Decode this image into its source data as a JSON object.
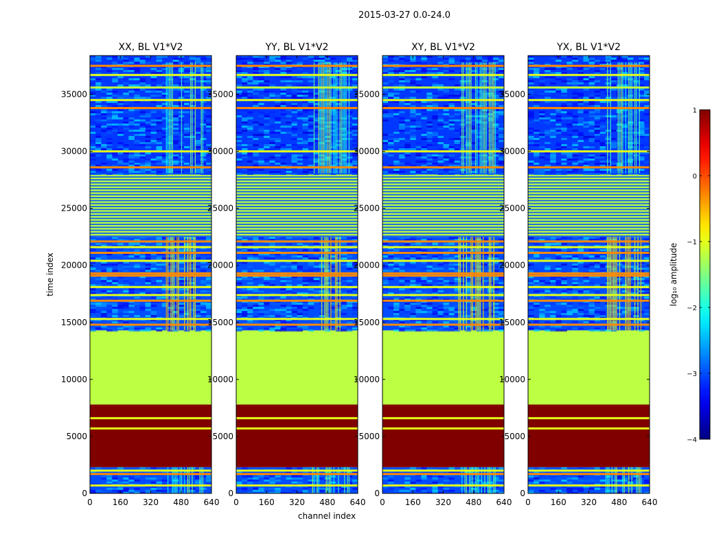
{
  "chart_data": {
    "type": "heatmap",
    "suptitle": "2015-03-27 0.0-24.0",
    "xlabel": "channel index",
    "ylabel": "time index",
    "xlim": [
      0,
      640
    ],
    "ylim": [
      0,
      38400
    ],
    "xticks": [
      0,
      160,
      320,
      480,
      640
    ],
    "yticks": [
      0,
      5000,
      10000,
      15000,
      20000,
      25000,
      30000,
      35000
    ],
    "colorbar": {
      "label": "log₁₀ amplitude",
      "min": -4,
      "max": 1,
      "ticks": [
        1,
        0,
        -1,
        -2,
        -3,
        -4
      ],
      "tick_labels": [
        "1",
        "0",
        "−1",
        "−2",
        "−3",
        "−4"
      ],
      "colormap": [
        "#00007f",
        "#0000ff",
        "#007fff",
        "#00ffff",
        "#7fff7f",
        "#ffff00",
        "#ff7f00",
        "#ff0000",
        "#7f0000"
      ]
    },
    "panels": [
      {
        "title": "XX, BL V1*V2",
        "id": "xx"
      },
      {
        "title": "YY, BL V1*V2",
        "id": "yy"
      },
      {
        "title": "XY, BL V1*V2",
        "id": "xy"
      },
      {
        "title": "YX, BL V1*V2",
        "id": "yx"
      }
    ],
    "regions": [
      {
        "t0": 0,
        "t1": 2300,
        "value": -3.0,
        "note": "noise floor with RFI spikes"
      },
      {
        "t0": 2300,
        "t1": 7800,
        "value": 1.0,
        "note": "saturated"
      },
      {
        "t0": 7800,
        "t1": 14300,
        "value": -1.2,
        "note": "constant"
      },
      {
        "t0": 14300,
        "t1": 22500,
        "value": -3.0,
        "note": "mixed"
      },
      {
        "t0": 22500,
        "t1": 28000,
        "value": -1.2,
        "note": "banded"
      },
      {
        "t0": 28000,
        "t1": 38400,
        "value": -3.1,
        "note": "noise floor"
      }
    ],
    "rfi_band_channels": [
      400,
      600
    ],
    "horizontal_lines": [
      {
        "t": 700,
        "value": -1.0
      },
      {
        "t": 1700,
        "value": -0.3
      },
      {
        "t": 2000,
        "value": -1.0
      },
      {
        "t": 5700,
        "value": -1.0
      },
      {
        "t": 6600,
        "value": -1.0
      },
      {
        "t": 14800,
        "value": -0.3
      },
      {
        "t": 15300,
        "value": -1.0
      },
      {
        "t": 16900,
        "value": -0.3
      },
      {
        "t": 17400,
        "value": -1.0
      },
      {
        "t": 18100,
        "value": -1.0
      },
      {
        "t": 19100,
        "value": -0.3
      },
      {
        "t": 19300,
        "value": -0.3
      },
      {
        "t": 20400,
        "value": -1.0
      },
      {
        "t": 21100,
        "value": -0.3
      },
      {
        "t": 21600,
        "value": -1.0
      },
      {
        "t": 22100,
        "value": -0.3
      },
      {
        "t": 28600,
        "value": -0.3
      },
      {
        "t": 30000,
        "value": -1.0
      },
      {
        "t": 33800,
        "value": -0.3
      },
      {
        "t": 34500,
        "value": -1.0
      },
      {
        "t": 35600,
        "value": -1.2
      },
      {
        "t": 36700,
        "value": -1.0
      },
      {
        "t": 37500,
        "value": -0.3
      }
    ]
  }
}
